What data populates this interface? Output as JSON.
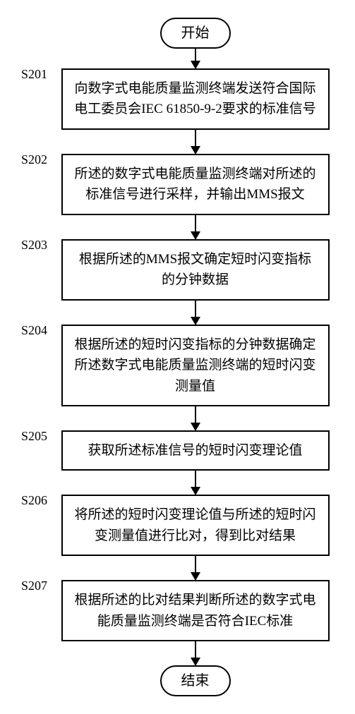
{
  "flowchart": {
    "type": "flowchart",
    "background_color": "#ffffff",
    "border_color": "#000000",
    "text_color": "#000000",
    "font_family": "SimSun",
    "label_font_family": "Times New Roman",
    "process_fontsize": 19,
    "label_fontsize": 18,
    "terminal_fontsize": 20,
    "process_width": 380,
    "border_width": 2,
    "arrow_head_width": 14,
    "arrow_head_height": 12,
    "start": "开始",
    "end": "结束",
    "steps": [
      {
        "id": "S201",
        "text": "向数字式电能质量监测终端发送符合国际电工委员会IEC 61850-9-2要求的标准信号"
      },
      {
        "id": "S202",
        "text": "所述的数字式电能质量监测终端对所述的标准信号进行采样，并输出MMS报文"
      },
      {
        "id": "S203",
        "text": "根据所述的MMS报文确定短时闪变指标的分钟数据"
      },
      {
        "id": "S204",
        "text": "根据所述的短时闪变指标的分钟数据确定所述数字式电能质量监测终端的短时闪变测量值"
      },
      {
        "id": "S205",
        "text": "获取所述标准信号的短时闪变理论值"
      },
      {
        "id": "S206",
        "text": "将所述的短时闪变理论值与所述的短时闪变测量值进行比对，得到比对结果"
      },
      {
        "id": "S207",
        "text": "根据所述的比对结果判断所述的数字式电能质量监测终端是否符合IEC标准"
      }
    ]
  }
}
